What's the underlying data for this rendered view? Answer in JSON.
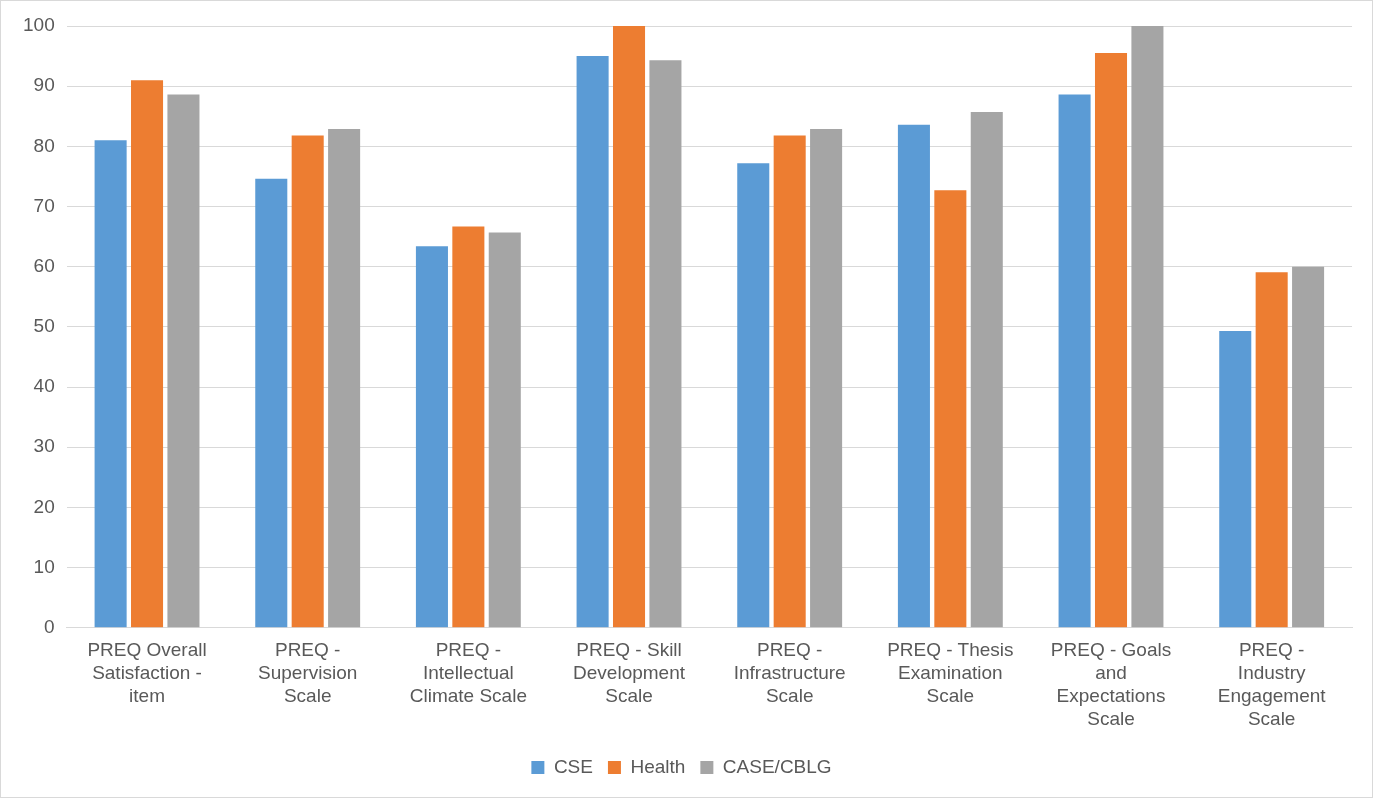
{
  "chart_data": {
    "type": "bar",
    "categories": [
      "PREQ Overall Satisfaction - item",
      "PREQ - Supervision Scale",
      "PREQ - Intellectual Climate Scale",
      "PREQ - Skill Development Scale",
      "PREQ - Infrastructure Scale",
      "PREQ - Thesis Examination Scale",
      "PREQ - Goals and Expectations Scale",
      "PREQ - Industry Engagement Scale"
    ],
    "series": [
      {
        "name": "CSE",
        "color": "#5b9bd5",
        "values": [
          81,
          74.6,
          63.4,
          95,
          77.2,
          83.6,
          88.6,
          49.3
        ]
      },
      {
        "name": "Health",
        "color": "#ed7d31",
        "values": [
          91,
          81.8,
          66.7,
          100,
          81.8,
          72.7,
          95.5,
          59.1
        ]
      },
      {
        "name": "CASE/CBLG",
        "color": "#a5a5a5",
        "values": [
          88.6,
          82.9,
          65.7,
          94.3,
          82.9,
          85.7,
          100,
          60
        ]
      }
    ],
    "ylim": [
      0,
      100
    ],
    "yticks": [
      0,
      10,
      20,
      30,
      40,
      50,
      60,
      70,
      80,
      90,
      100
    ],
    "grid": "y",
    "legend": "bottom"
  }
}
